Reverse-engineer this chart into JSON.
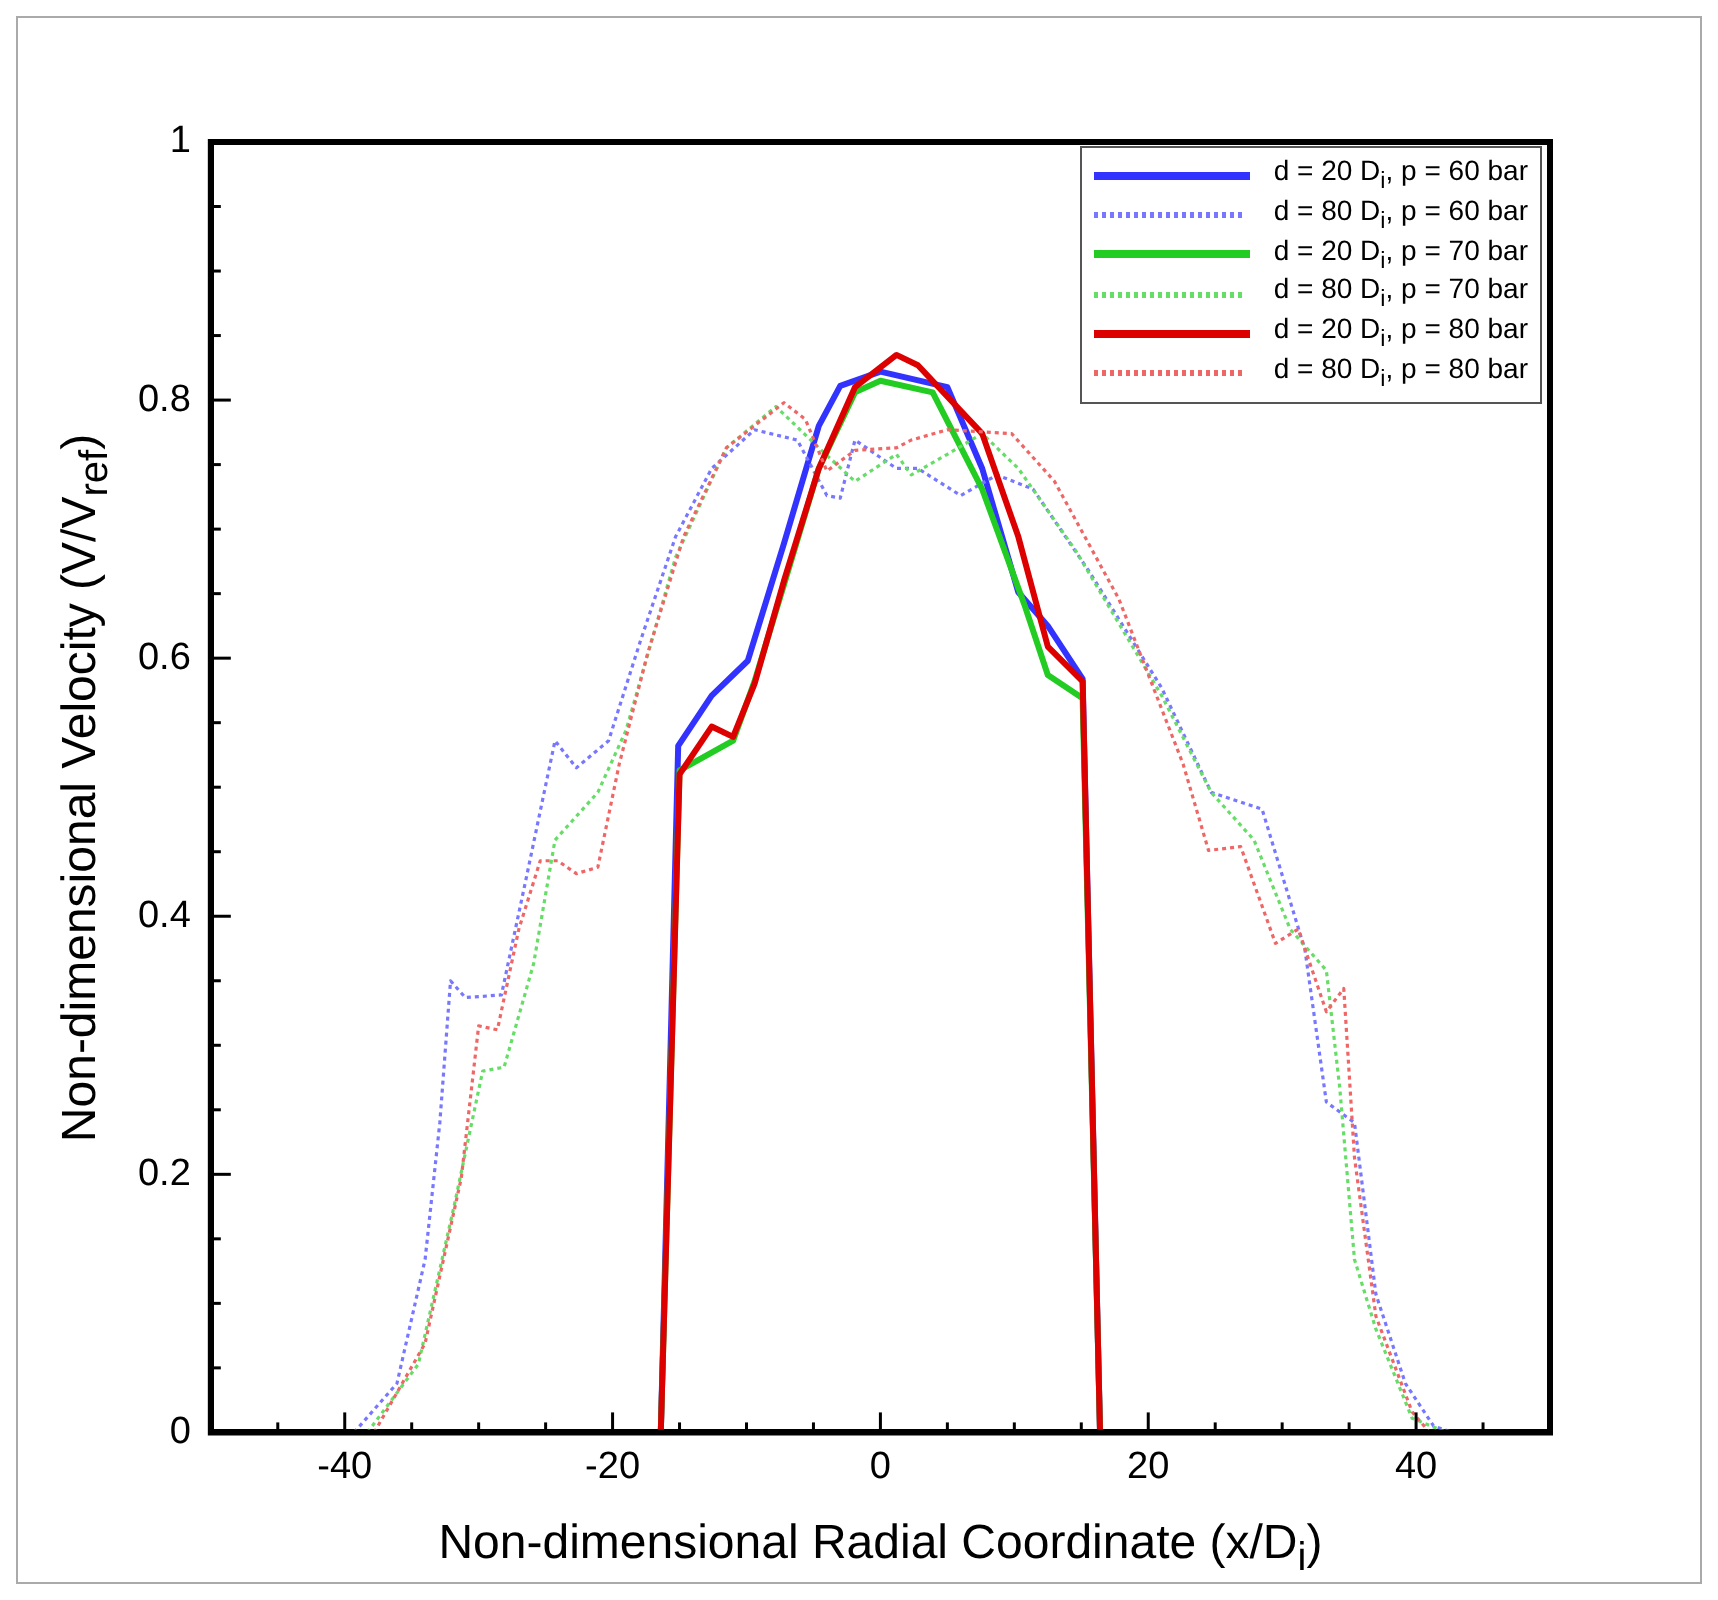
{
  "chart_data": {
    "type": "line",
    "xlabel": "Non-dimensional Radial Coordinate (x/D$_{i}$)",
    "ylabel": "Non-dimensional Velocity (V/V$_{ref}$)",
    "xlim": [
      -50,
      50
    ],
    "ylim": [
      0,
      1
    ],
    "xticks": [
      {
        "value": -45,
        "label": null
      },
      -40,
      {
        "value": -35,
        "label": null
      },
      {
        "value": -30,
        "label": null
      },
      {
        "value": -25,
        "label": null
      },
      -20,
      {
        "value": -15,
        "label": null
      },
      {
        "value": -10,
        "label": null
      },
      {
        "value": -5,
        "label": null
      },
      0,
      {
        "value": 5,
        "label": null
      },
      {
        "value": 10,
        "label": null
      },
      {
        "value": 15,
        "label": null
      },
      20,
      {
        "value": 25,
        "label": null
      },
      {
        "value": 30,
        "label": null
      },
      {
        "value": 35,
        "label": null
      },
      40,
      {
        "value": 45,
        "label": null
      }
    ],
    "yticks": [
      0,
      {
        "value": 0.05,
        "label": null
      },
      {
        "value": 0.1,
        "label": null
      },
      {
        "value": 0.15,
        "label": null
      },
      0.2,
      {
        "value": 0.25,
        "label": null
      },
      {
        "value": 0.3,
        "label": null
      },
      {
        "value": 0.35,
        "label": null
      },
      0.4,
      {
        "value": 0.45,
        "label": null
      },
      {
        "value": 0.5,
        "label": null
      },
      {
        "value": 0.55,
        "label": null
      },
      0.6,
      {
        "value": 0.65,
        "label": null
      },
      {
        "value": 0.7,
        "label": null
      },
      {
        "value": 0.75,
        "label": null
      },
      0.8,
      {
        "value": 0.85,
        "label": null
      },
      {
        "value": 0.9,
        "label": null
      },
      {
        "value": 0.95,
        "label": null
      },
      1
    ],
    "grid": false,
    "legend": "top right",
    "marker": "none",
    "series": [
      {
        "name": "d = 20 D$_{i}$, p = 60 bar",
        "color": "#3333ff",
        "line_style": "solid",
        "x": [
          -16.4,
          -15.1,
          -12.6,
          -9.9,
          -7.2,
          -4.6,
          -3,
          0,
          5,
          7.6,
          10.3,
          12.5,
          15.1,
          16.4
        ],
        "values": [
          0,
          0.532,
          0.571,
          0.598,
          0.689,
          0.78,
          0.811,
          0.822,
          0.81,
          0.747,
          0.651,
          0.625,
          0.584,
          0
        ]
      },
      {
        "name": "d = 80 D$_{i}$, p = 60 bar",
        "color": "#7777ff",
        "line_style": "dotted",
        "x": [
          -39.3,
          -36.1,
          -34,
          -32.9,
          -32.1,
          -31,
          -28.3,
          -26.5,
          -24.3,
          -22.7,
          -20.3,
          -17.9,
          -15.3,
          -12.6,
          -9.4,
          -6.2,
          -4,
          -3,
          -1.9,
          1.2,
          2.8,
          6,
          8.7,
          11.4,
          15.6,
          21,
          24.7,
          28.5,
          31.7,
          33.3,
          35.4,
          37,
          39.2,
          41.3,
          42.7
        ],
        "values": [
          0,
          0.038,
          0.134,
          0.24,
          0.35,
          0.337,
          0.339,
          0.427,
          0.536,
          0.515,
          0.536,
          0.614,
          0.694,
          0.747,
          0.777,
          0.769,
          0.726,
          0.724,
          0.769,
          0.747,
          0.747,
          0.726,
          0.742,
          0.731,
          0.667,
          0.577,
          0.496,
          0.483,
          0.374,
          0.256,
          0.24,
          0.107,
          0.038,
          0.005,
          0
        ]
      },
      {
        "name": "d = 20 D$_{i}$, p = 70 bar",
        "color": "#22cc22",
        "line_style": "solid",
        "x": [
          -16.4,
          -15,
          -11,
          -9.4,
          -7.2,
          -4.6,
          -1.9,
          0,
          3.9,
          7.6,
          10.8,
          12.5,
          15.1,
          16.4
        ],
        "values": [
          0,
          0.513,
          0.536,
          0.582,
          0.657,
          0.747,
          0.806,
          0.815,
          0.806,
          0.731,
          0.64,
          0.587,
          0.569,
          0
        ]
      },
      {
        "name": "d = 80 D$_{i}$, p = 70 bar",
        "color": "#66dd66",
        "line_style": "dotted",
        "x": [
          -38.3,
          -34.5,
          -31.8,
          -29.7,
          -28.1,
          -25.9,
          -24.3,
          -21.1,
          -19,
          -15.3,
          -11.5,
          -7.8,
          -4.6,
          -1.9,
          1.2,
          2.3,
          5,
          7.6,
          10.3,
          14.6,
          21,
          24.7,
          27.9,
          30.6,
          33.3,
          34.3,
          35.4,
          37,
          39.7,
          42.3
        ],
        "values": [
          0,
          0.053,
          0.177,
          0.28,
          0.283,
          0.363,
          0.459,
          0.496,
          0.544,
          0.678,
          0.763,
          0.795,
          0.763,
          0.737,
          0.758,
          0.742,
          0.758,
          0.774,
          0.747,
          0.683,
          0.571,
          0.496,
          0.459,
          0.39,
          0.358,
          0.267,
          0.134,
          0.08,
          0.011,
          0
        ]
      },
      {
        "name": "d = 20 D$_{i}$, p = 80 bar",
        "color": "#dd0000",
        "line_style": "solid",
        "x": [
          -16.4,
          -15,
          -12.6,
          -11,
          -9.4,
          -7.2,
          -4.6,
          -1.9,
          1.2,
          2.8,
          7.6,
          10.3,
          12.5,
          15.1,
          16.4
        ],
        "values": [
          0,
          0.51,
          0.547,
          0.539,
          0.58,
          0.66,
          0.747,
          0.81,
          0.835,
          0.827,
          0.774,
          0.694,
          0.609,
          0.582,
          0
        ]
      },
      {
        "name": "d = 80 D$_{i}$, p = 80 bar",
        "color": "#ee6666",
        "line_style": "dotted",
        "x": [
          -37.8,
          -34,
          -31.3,
          -30,
          -28.6,
          -27,
          -25.4,
          -24.1,
          -22.7,
          -21.1,
          -19.5,
          -17.4,
          -14.7,
          -11.5,
          -7.2,
          -5.6,
          -4,
          -1.9,
          1.2,
          2.3,
          5,
          9.8,
          13,
          17.8,
          22.6,
          24.5,
          26.9,
          29.5,
          31.2,
          33.3,
          34.6,
          35.4,
          37,
          39.7,
          41
        ],
        "values": [
          0,
          0.069,
          0.197,
          0.315,
          0.312,
          0.39,
          0.443,
          0.443,
          0.433,
          0.438,
          0.518,
          0.603,
          0.694,
          0.763,
          0.798,
          0.785,
          0.745,
          0.761,
          0.763,
          0.769,
          0.777,
          0.774,
          0.737,
          0.646,
          0.518,
          0.451,
          0.454,
          0.379,
          0.39,
          0.326,
          0.344,
          0.213,
          0.09,
          0.016,
          0
        ]
      }
    ]
  }
}
